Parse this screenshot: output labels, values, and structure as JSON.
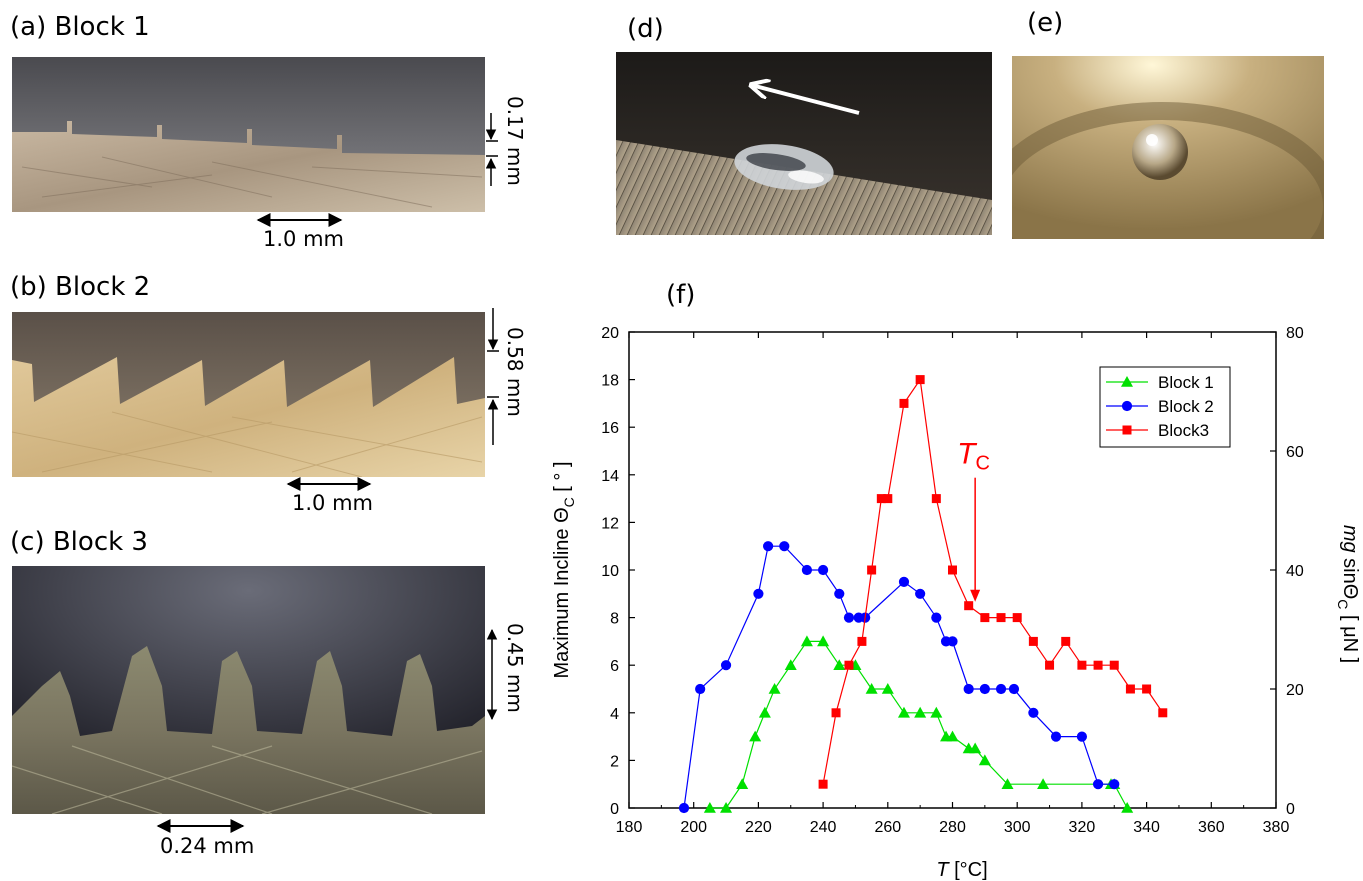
{
  "panels": {
    "a": {
      "label": "(a) Block 1",
      "scale_h": "1.0 mm",
      "scale_v": "0.17 mm"
    },
    "b": {
      "label": "(b) Block 2",
      "scale_h": "1.0 mm",
      "scale_v": "0.58 mm"
    },
    "c": {
      "label": "(c) Block 3",
      "scale_h": "0.24 mm",
      "scale_v": "0.45 mm"
    },
    "d": {
      "label": "(d)"
    },
    "e": {
      "label": "(e)"
    },
    "f": {
      "label": "(f)"
    }
  },
  "colors": {
    "block1": "#00e000",
    "block2": "#0000ff",
    "block3": "#ff0000"
  },
  "chart_data": {
    "type": "line",
    "xlabel_italic": "T",
    "xlabel_unit": " [°C]",
    "ylabel": "Maximum Incline Θ",
    "ylabel_sub": "C",
    "ylabel_unit": " [ ° ]",
    "y2label_italic": "mg",
    "y2label_mid": " sinΘ",
    "y2label_sub": "C",
    "y2label_unit": " [ μN ]",
    "xlim": [
      180,
      380
    ],
    "ylim": [
      0,
      20
    ],
    "y2lim": [
      0,
      80
    ],
    "xticks": [
      180,
      200,
      220,
      240,
      260,
      280,
      300,
      320,
      340,
      360,
      380
    ],
    "yticks": [
      0,
      2,
      4,
      6,
      8,
      10,
      12,
      14,
      16,
      18,
      20
    ],
    "y2ticks": [
      0,
      20,
      40,
      60,
      80
    ],
    "legend_position": "top-right",
    "annotation": {
      "text": "T",
      "sub": "C",
      "x": 287,
      "y": 8.5
    },
    "series": [
      {
        "name": "Block 1",
        "marker": "triangle",
        "color": "#00e000",
        "x": [
          205,
          210,
          215,
          219,
          222,
          225,
          230,
          235,
          240,
          245,
          250,
          255,
          260,
          265,
          270,
          275,
          278,
          280,
          285,
          287,
          290,
          297,
          308,
          329,
          330,
          334
        ],
        "y": [
          0,
          0,
          1,
          3,
          4,
          5,
          6,
          7,
          7,
          6,
          6,
          5,
          5,
          4,
          4,
          4,
          3,
          3,
          2.5,
          2.5,
          2,
          1,
          1,
          1,
          1,
          0
        ]
      },
      {
        "name": "Block 2",
        "marker": "circle",
        "color": "#0000ff",
        "x": [
          197,
          202,
          210,
          220,
          223,
          228,
          235,
          240,
          245,
          248,
          251,
          253,
          265,
          270,
          275,
          278,
          280,
          285,
          290,
          295,
          299,
          305,
          312,
          320,
          325,
          330
        ],
        "y": [
          0,
          5,
          6,
          9,
          11,
          11,
          10,
          10,
          9,
          8,
          8,
          8,
          9.5,
          9,
          8,
          7,
          7,
          5,
          5,
          5,
          5,
          4,
          3,
          3,
          1,
          1
        ]
      },
      {
        "name": "Block3",
        "marker": "square",
        "color": "#ff0000",
        "x": [
          240,
          244,
          248,
          252,
          255,
          258,
          260,
          265,
          270,
          275,
          280,
          285,
          290,
          295,
          300,
          305,
          310,
          315,
          320,
          325,
          330,
          335,
          340,
          345
        ],
        "y": [
          1,
          4,
          6,
          7,
          10,
          13,
          13,
          17,
          18,
          13,
          10,
          8.5,
          8,
          8,
          8,
          7,
          6,
          7,
          6,
          6,
          6,
          5,
          5,
          4
        ]
      }
    ]
  }
}
